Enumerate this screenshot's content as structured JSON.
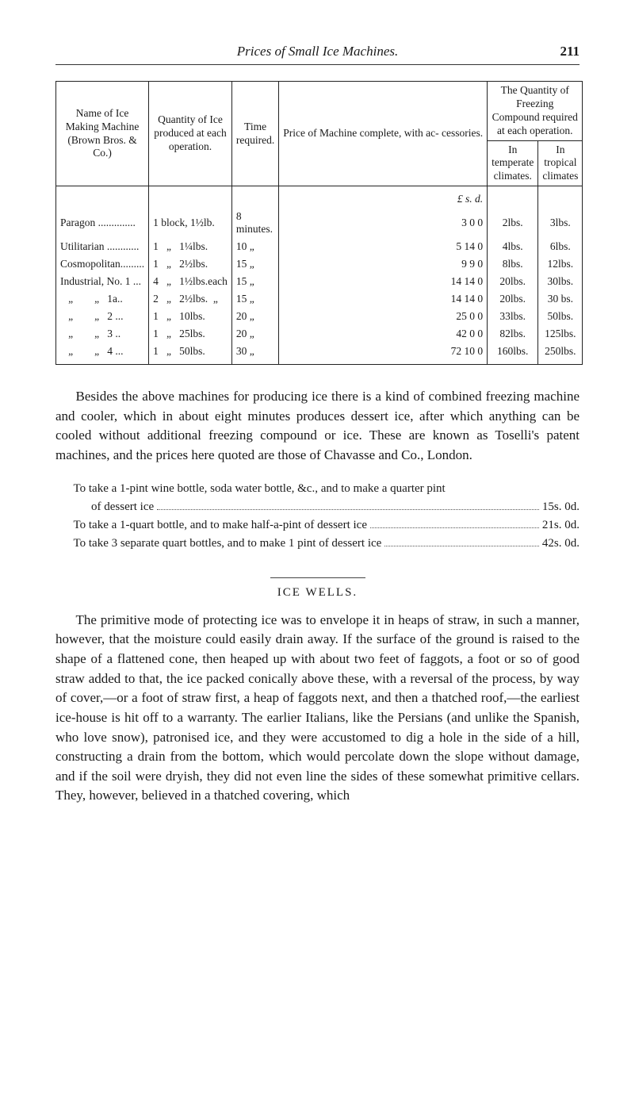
{
  "header": {
    "running_title": "Prices of Small Ice Machines.",
    "page_number": "211"
  },
  "table": {
    "columns": {
      "name": "Name of Ice Making Machine (Brown Bros. & Co.)",
      "qty": "Quantity of Ice produced at each operation.",
      "time": "Time required.",
      "price": "Price of Machine complete, with ac- cessories.",
      "freeze_group": "The Quantity of Freezing Compound required at each operation.",
      "temp": "In temperate climates.",
      "trop": "In tropical climates"
    },
    "lsd_header": "£  s.  d.",
    "rows": [
      {
        "name": "Paragon ..............",
        "qty": "1 block, 1½lb.",
        "time": "8 minutes.",
        "price": "3  0  0",
        "temp": "2lbs.",
        "trop": "3lbs."
      },
      {
        "name": "Utilitarian ............",
        "qty": "1   „   1¼lbs.",
        "time": "10   „",
        "price": "5 14  0",
        "temp": "4lbs.",
        "trop": "6lbs."
      },
      {
        "name": "Cosmopolitan.........",
        "qty": "1   „   2½lbs.",
        "time": "15   „",
        "price": "9  9  0",
        "temp": "8lbs.",
        "trop": "12lbs."
      },
      {
        "name": "Industrial, No. 1 ...",
        "qty": "4   „   1½lbs.each",
        "time": "15   „",
        "price": "14 14  0",
        "temp": "20lbs.",
        "trop": "30lbs."
      },
      {
        "name": "   „        „   1a..",
        "qty": "2   „   2½lbs.  „",
        "time": "15   „",
        "price": "14 14  0",
        "temp": "20lbs.",
        "trop": "30 bs."
      },
      {
        "name": "   „        „   2 ...",
        "qty": "1   „   10lbs.",
        "time": "20   „",
        "price": "25  0  0",
        "temp": "33lbs.",
        "trop": "50lbs."
      },
      {
        "name": "   „        „   3 ..",
        "qty": "1   „   25lbs.",
        "time": "20   „",
        "price": "42  0  0",
        "temp": "82lbs.",
        "trop": "125lbs."
      },
      {
        "name": "   „        „   4 ...",
        "qty": "1   „   50lbs.",
        "time": "30   „",
        "price": "72 10  0",
        "temp": "160lbs.",
        "trop": "250lbs."
      }
    ]
  },
  "para1": "Besides the above machines for producing ice there is a kind of combined freezing machine and cooler, which in about eight minutes produces dessert ice, after which anything can be cooled without additional freezing compound or ice. These are known as Toselli's patent machines, and the prices here quoted are those of Chavasse and Co., London.",
  "price_lines": [
    {
      "lead": "To take a 1-pint wine bottle, soda water bottle, &c., and to make a quarter pint",
      "amt": ""
    },
    {
      "lead": "of dessert ice",
      "amt": "15s. 0d.",
      "noindent": true,
      "pad": true
    },
    {
      "lead": "To take a 1-quart bottle, and to make half-a-pint of dessert ice",
      "amt": "21s. 0d."
    },
    {
      "lead": "To take 3 separate quart bottles, and to make 1 pint of dessert ice",
      "amt": "42s. 0d."
    }
  ],
  "section_head": "ICE WELLS.",
  "para2": "The primitive mode of protecting ice was to envelope it in heaps of straw, in such a manner, however, that the moisture could easily drain away. If the surface of the ground is raised to the shape of a flattened cone, then heaped up with about two feet of faggots, a foot or so of good straw added to that, the ice packed conically above these, with a reversal of the process, by way of cover,—or a foot of straw first, a heap of faggots next, and then a thatched roof,—the earliest ice-house is hit off to a warranty. The earlier Italians, like the Persians (and unlike the Spanish, who love snow), patronised ice, and they were accustomed to dig a hole in the side of a hill, constructing a drain from the bottom, which would percolate down the slope without damage, and if the soil were dryish, they did not even line the sides of these somewhat primitive cellars. They, however, believed in a thatched covering, which"
}
